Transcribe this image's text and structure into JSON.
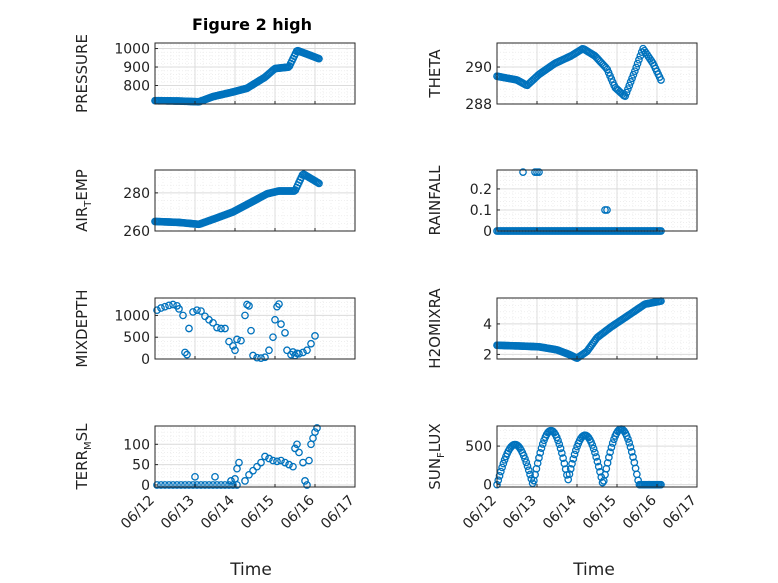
{
  "figure_title": "Figure 2 high",
  "x_axis_label": "Time",
  "x_tick_labels": [
    "06/12",
    "06/13",
    "06/14",
    "06/15",
    "06/16",
    "06/17"
  ],
  "colors": {
    "marker": "#0072BD",
    "grid_major": "#dcdcdc",
    "grid_minor": "#ebebeb",
    "axis": "#262626"
  },
  "chart_data": [
    {
      "type": "scatter",
      "ylabel": "PRESSURE",
      "ylabel_parts": [
        "PRESSURE"
      ],
      "ylim": [
        700,
        1030
      ],
      "yticks": [
        800,
        900,
        1000
      ],
      "grid": true,
      "anchors": [
        [
          0,
          718
        ],
        [
          0.6,
          716
        ],
        [
          1.1,
          712
        ],
        [
          1.45,
          740
        ],
        [
          1.95,
          765
        ],
        [
          2.3,
          785
        ],
        [
          2.75,
          845
        ],
        [
          3.0,
          892
        ],
        [
          3.35,
          900
        ],
        [
          3.55,
          990
        ],
        [
          3.8,
          970
        ],
        [
          4.1,
          945
        ]
      ],
      "points_count": 140
    },
    {
      "type": "scatter",
      "ylabel": "THETA",
      "ylabel_parts": [
        "THETA"
      ],
      "ylim": [
        288,
        291.3
      ],
      "yticks": [
        288,
        290
      ],
      "grid": true,
      "anchors": [
        [
          0,
          289.5
        ],
        [
          0.5,
          289.3
        ],
        [
          0.75,
          289.0
        ],
        [
          1.05,
          289.6
        ],
        [
          1.45,
          290.2
        ],
        [
          1.85,
          290.6
        ],
        [
          2.15,
          291.0
        ],
        [
          2.45,
          290.6
        ],
        [
          2.75,
          289.9
        ],
        [
          2.95,
          288.9
        ],
        [
          3.2,
          288.4
        ],
        [
          3.45,
          289.8
        ],
        [
          3.65,
          291.0
        ],
        [
          3.9,
          290.2
        ],
        [
          4.1,
          289.3
        ]
      ],
      "points_count": 120
    },
    {
      "type": "scatter",
      "ylabel": "AIR_TEMP",
      "ylabel_parts": [
        "AIR",
        "T",
        "EMP"
      ],
      "ylim": [
        260,
        292
      ],
      "yticks": [
        260,
        280
      ],
      "grid": true,
      "anchors": [
        [
          0,
          265
        ],
        [
          0.6,
          264.5
        ],
        [
          1.1,
          263.5
        ],
        [
          1.5,
          266.5
        ],
        [
          1.95,
          270
        ],
        [
          2.4,
          275
        ],
        [
          2.8,
          279.5
        ],
        [
          3.1,
          281
        ],
        [
          3.5,
          281
        ],
        [
          3.7,
          290
        ],
        [
          4.1,
          285
        ]
      ],
      "points_count": 140
    },
    {
      "type": "scatter",
      "ylabel": "RAINFALL",
      "ylabel_parts": [
        "RAINFALL"
      ],
      "ylim": [
        0,
        0.29
      ],
      "yticks": [
        0,
        0.1,
        0.2
      ],
      "grid": true,
      "baseline": 0,
      "x_range": [
        0,
        4.1
      ],
      "extra_points": [
        [
          0.65,
          0.28
        ],
        [
          0.95,
          0.28
        ],
        [
          1.0,
          0.28
        ],
        [
          1.05,
          0.28
        ],
        [
          2.7,
          0.1
        ],
        [
          2.75,
          0.1
        ]
      ],
      "points_count": 110
    },
    {
      "type": "scatter",
      "ylabel": "MIXDEPTH",
      "ylabel_parts": [
        "MIXDEPTH"
      ],
      "ylim": [
        0,
        1400
      ],
      "yticks": [
        0,
        500,
        1000
      ],
      "grid": true,
      "points": [
        [
          0.05,
          1120
        ],
        [
          0.15,
          1170
        ],
        [
          0.25,
          1200
        ],
        [
          0.35,
          1230
        ],
        [
          0.45,
          1250
        ],
        [
          0.55,
          1220
        ],
        [
          0.6,
          1150
        ],
        [
          0.7,
          1000
        ],
        [
          0.75,
          150
        ],
        [
          0.8,
          100
        ],
        [
          0.85,
          700
        ],
        [
          0.95,
          1080
        ],
        [
          1.05,
          1120
        ],
        [
          1.15,
          1100
        ],
        [
          1.25,
          980
        ],
        [
          1.35,
          900
        ],
        [
          1.45,
          830
        ],
        [
          1.55,
          720
        ],
        [
          1.65,
          700
        ],
        [
          1.75,
          700
        ],
        [
          1.85,
          400
        ],
        [
          1.95,
          300
        ],
        [
          2.0,
          200
        ],
        [
          2.05,
          450
        ],
        [
          2.15,
          420
        ],
        [
          2.25,
          1000
        ],
        [
          2.3,
          1250
        ],
        [
          2.35,
          1220
        ],
        [
          2.4,
          650
        ],
        [
          2.45,
          80
        ],
        [
          2.55,
          30
        ],
        [
          2.65,
          20
        ],
        [
          2.75,
          40
        ],
        [
          2.85,
          200
        ],
        [
          2.95,
          500
        ],
        [
          3.0,
          900
        ],
        [
          3.05,
          1200
        ],
        [
          3.1,
          1260
        ],
        [
          3.15,
          800
        ],
        [
          3.25,
          600
        ],
        [
          3.3,
          200
        ],
        [
          3.4,
          100
        ],
        [
          3.5,
          80
        ],
        [
          3.6,
          120
        ],
        [
          3.7,
          150
        ],
        [
          3.8,
          200
        ],
        [
          3.9,
          350
        ],
        [
          4.0,
          530
        ],
        [
          3.45,
          160
        ],
        [
          3.55,
          130
        ]
      ]
    },
    {
      "type": "scatter",
      "ylabel": "H2OMIXRA",
      "ylabel_parts": [
        "H2OMIXRA"
      ],
      "ylim": [
        1.7,
        5.7
      ],
      "yticks": [
        2,
        4
      ],
      "grid": true,
      "anchors": [
        [
          0,
          2.6
        ],
        [
          0.6,
          2.55
        ],
        [
          1.05,
          2.5
        ],
        [
          1.5,
          2.3
        ],
        [
          1.8,
          2.0
        ],
        [
          2.0,
          1.75
        ],
        [
          2.25,
          2.2
        ],
        [
          2.5,
          3.1
        ],
        [
          2.85,
          3.8
        ],
        [
          3.25,
          4.5
        ],
        [
          3.7,
          5.3
        ],
        [
          4.1,
          5.5
        ]
      ],
      "points_count": 130
    },
    {
      "type": "scatter",
      "ylabel": "TERR_MSL",
      "ylabel_parts": [
        "TERR",
        "M",
        "SL"
      ],
      "ylim": [
        -5,
        145
      ],
      "yticks": [
        0,
        50,
        100
      ],
      "grid": true,
      "points": [
        [
          0.05,
          0
        ],
        [
          0.15,
          0
        ],
        [
          0.25,
          0
        ],
        [
          0.35,
          0
        ],
        [
          0.45,
          0
        ],
        [
          0.55,
          0
        ],
        [
          0.65,
          0
        ],
        [
          0.75,
          0
        ],
        [
          0.85,
          0
        ],
        [
          0.95,
          0
        ],
        [
          1.05,
          0
        ],
        [
          1.15,
          0
        ],
        [
          1.25,
          0
        ],
        [
          1.35,
          0
        ],
        [
          1.45,
          0
        ],
        [
          1.55,
          0
        ],
        [
          1.65,
          0
        ],
        [
          1.75,
          0
        ],
        [
          1.85,
          0
        ],
        [
          1.95,
          0
        ],
        [
          2.05,
          0
        ],
        [
          1.0,
          20
        ],
        [
          1.5,
          20
        ],
        [
          1.9,
          10
        ],
        [
          2.0,
          15
        ],
        [
          2.05,
          40
        ],
        [
          2.1,
          55
        ],
        [
          2.25,
          10
        ],
        [
          2.35,
          25
        ],
        [
          2.45,
          35
        ],
        [
          2.55,
          45
        ],
        [
          2.65,
          55
        ],
        [
          2.75,
          70
        ],
        [
          2.85,
          65
        ],
        [
          2.95,
          60
        ],
        [
          3.05,
          58
        ],
        [
          3.15,
          60
        ],
        [
          3.25,
          55
        ],
        [
          3.35,
          50
        ],
        [
          3.45,
          45
        ],
        [
          3.5,
          90
        ],
        [
          3.55,
          100
        ],
        [
          3.6,
          80
        ],
        [
          3.7,
          55
        ],
        [
          3.75,
          10
        ],
        [
          3.8,
          0
        ],
        [
          3.85,
          60
        ],
        [
          3.9,
          100
        ],
        [
          3.95,
          115
        ],
        [
          4.0,
          130
        ],
        [
          4.05,
          140
        ]
      ]
    },
    {
      "type": "scatter",
      "ylabel": "SUN_FLUX",
      "ylabel_parts": [
        "SUN",
        "F",
        "LUX"
      ],
      "ylim": [
        -30,
        760
      ],
      "yticks": [
        0,
        500
      ],
      "grid": true,
      "peaks": [
        [
          0.45,
          520
        ],
        [
          1.35,
          700
        ],
        [
          2.2,
          640
        ],
        [
          3.1,
          720
        ]
      ],
      "peak_width": 0.45,
      "x_range": [
        0,
        4.1
      ],
      "points_count": 130
    }
  ]
}
